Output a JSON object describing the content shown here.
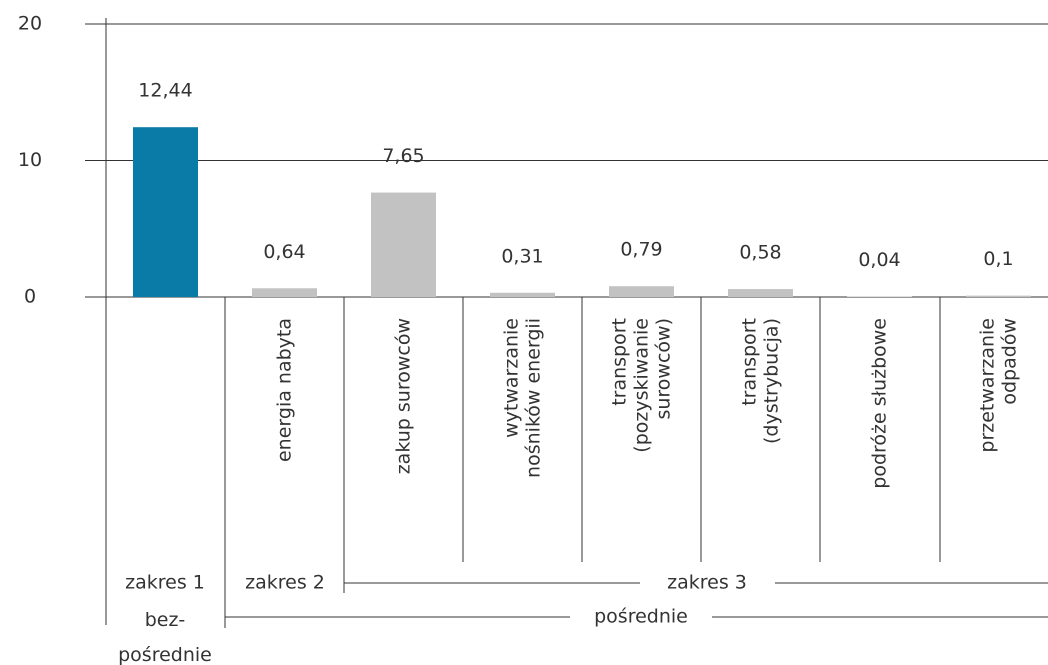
{
  "chart_data": {
    "type": "bar",
    "categories": [
      null,
      "energia nabyta",
      "zakup surowców",
      "wytwarzanie\nnośników energii",
      "transport\n(pozyskiwanie\nsurowców)",
      "transport\n(dystrybucja)",
      "podróże służbowe",
      "przetwarzanie\nodpadów"
    ],
    "values": [
      12.44,
      0.64,
      7.65,
      0.31,
      0.79,
      0.58,
      0.04,
      0.1
    ],
    "value_labels": [
      "12,44",
      "0,64",
      "7,65",
      "0,31",
      "0,79",
      "0,58",
      "0,04",
      "0,1"
    ],
    "colors": [
      "#0a7aa6",
      "#c2c2c2",
      "#c2c2c2",
      "#c2c2c2",
      "#c2c2c2",
      "#c2c2c2",
      "#c2c2c2",
      "#c2c2c2"
    ],
    "ylim": [
      0,
      20
    ],
    "yticks": [
      0,
      10,
      20
    ],
    "grid": true,
    "scopes": [
      "zakres 1",
      "zakres 2",
      "zakres 3"
    ],
    "kinds": [
      "bez-\npośrednie",
      "pośrednie"
    ]
  }
}
